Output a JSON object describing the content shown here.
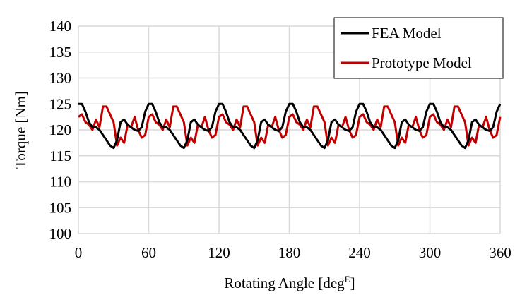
{
  "chart_data": {
    "type": "line",
    "title": "",
    "xlabel": "Rotating Angle [deg",
    "xlabel_superscript": "E",
    "xlabel_suffix": "]",
    "ylabel": "Torque [Nm]",
    "xlim": [
      0,
      360
    ],
    "ylim": [
      100,
      140
    ],
    "xticks": [
      0,
      60,
      120,
      180,
      240,
      300,
      360
    ],
    "yticks": [
      100,
      105,
      110,
      115,
      120,
      125,
      130,
      135,
      140
    ],
    "grid": true,
    "legend_position": "top-right",
    "x_step_deg": 3,
    "series": [
      {
        "name": "FEA Model",
        "color": "#000000",
        "values": [
          125,
          125,
          123.5,
          121.5,
          120.5,
          120.5,
          120,
          119,
          118,
          117,
          116.5,
          118,
          121.5,
          122,
          121,
          120.5,
          120,
          119.8,
          120.5,
          123.5,
          125,
          125,
          123.5,
          121.5,
          120.5,
          120.5,
          120,
          119,
          118,
          117,
          116.5,
          118,
          121.5,
          122,
          121,
          120.5,
          120,
          119.8,
          120.5,
          123.5,
          125,
          125,
          123.5,
          121.5,
          120.5,
          120.5,
          120,
          119,
          118,
          117,
          116.5,
          118,
          121.5,
          122,
          121,
          120.5,
          120,
          119.8,
          120.5,
          123.5,
          125,
          125,
          123.5,
          121.5,
          120.5,
          120.5,
          120,
          119,
          118,
          117,
          116.5,
          118,
          121.5,
          122,
          121,
          120.5,
          120,
          119.8,
          120.5,
          123.5,
          125,
          125,
          123.5,
          121.5,
          120.5,
          120.5,
          120,
          119,
          118,
          117,
          116.5,
          118,
          121.5,
          122,
          121,
          120.5,
          120,
          119.8,
          120.5,
          123.5,
          125,
          125,
          123.5,
          121.5,
          120.5,
          120.5,
          120,
          119,
          118,
          117,
          116.5,
          118,
          121.5,
          122,
          121,
          120.5,
          120,
          119.8,
          120.5,
          123.5,
          125
        ]
      },
      {
        "name": "Prototype Model",
        "color": "#c00000",
        "values": [
          122.5,
          123,
          121.5,
          121,
          120,
          122,
          120.5,
          124.5,
          124.5,
          123,
          121.5,
          117,
          118.5,
          117.5,
          121,
          120.5,
          122.5,
          120,
          118.5,
          119,
          122.5,
          123,
          121.5,
          121,
          120,
          122,
          120.5,
          124.5,
          124.5,
          123,
          121.5,
          117,
          118.5,
          117.5,
          121,
          120.5,
          122.5,
          120,
          118.5,
          119,
          122.5,
          123,
          121.5,
          121,
          120,
          122,
          120.5,
          124.5,
          124.5,
          123,
          121.5,
          117,
          118.5,
          117.5,
          121,
          120.5,
          122.5,
          120,
          118.5,
          119,
          122.5,
          123,
          121.5,
          121,
          120,
          122,
          120.5,
          124.5,
          124.5,
          123,
          121.5,
          117,
          118.5,
          117.5,
          121,
          120.5,
          122.5,
          120,
          118.5,
          119,
          122.5,
          123,
          121.5,
          121,
          120,
          122,
          120.5,
          124.5,
          124.5,
          123,
          121.5,
          117,
          118.5,
          117.5,
          121,
          120.5,
          122.5,
          120,
          118.5,
          119,
          122.5,
          123,
          121.5,
          121,
          120,
          122,
          120.5,
          124.5,
          124.5,
          123,
          121.5,
          117,
          118.5,
          117.5,
          121,
          120.5,
          122.5,
          120,
          118.5,
          119,
          122.5
        ]
      }
    ]
  }
}
